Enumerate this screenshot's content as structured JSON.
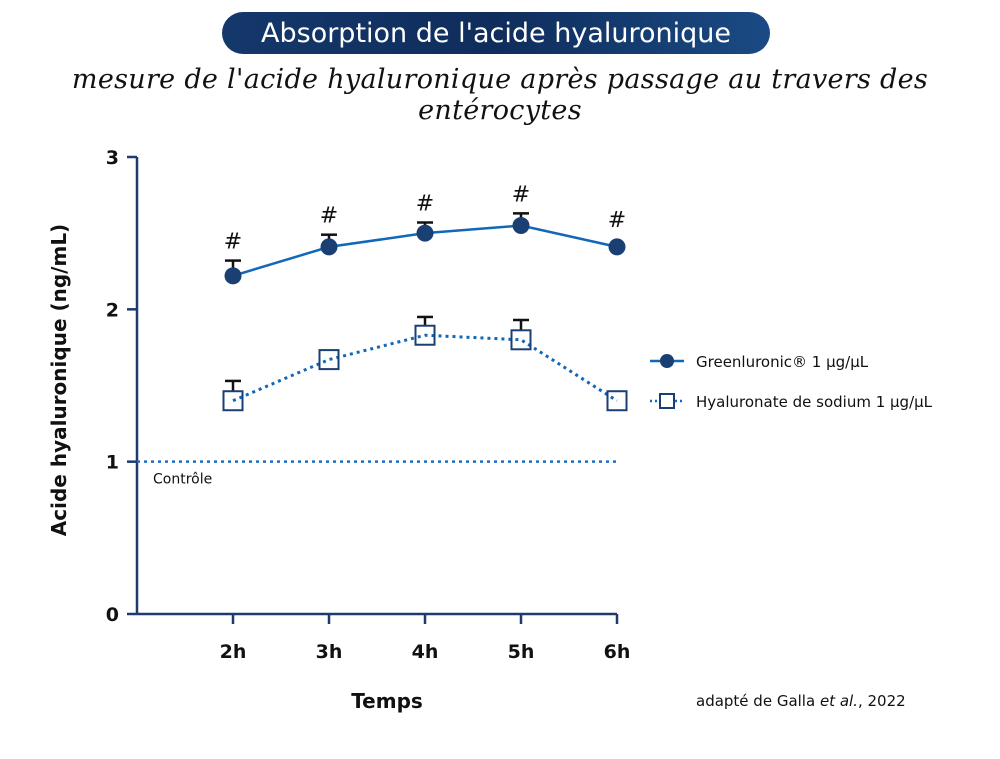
{
  "title": "Absorption de l'acide hyaluronique",
  "subtitle": "mesure de l'acide hyaluronique après passage au travers des entérocytes",
  "source": {
    "prefix": "adapté de Galla ",
    "italic": "et al.",
    "suffix": ", 2022"
  },
  "colors": {
    "line": "#1168b8",
    "marker": "#1a3f73",
    "axis": "#1e3a6e",
    "control": "#1f6fc0"
  },
  "chart_data": {
    "type": "line",
    "xlabel": "Temps",
    "ylabel": "Acide hyaluronique (ng/mL)",
    "categories": [
      "2h",
      "3h",
      "4h",
      "5h",
      "6h"
    ],
    "x": [
      2,
      3,
      4,
      5,
      6
    ],
    "xlim": [
      1,
      6
    ],
    "ylim": [
      0,
      3
    ],
    "yticks": [
      "0",
      "1",
      "2",
      "3"
    ],
    "legend_position": "right",
    "series": [
      {
        "name": "Greenluronic® 1 µg/µL",
        "style": "solid-circle",
        "values": [
          2.22,
          2.41,
          2.5,
          2.55,
          2.41
        ],
        "error_upper": [
          2.32,
          2.49,
          2.57,
          2.63,
          null
        ],
        "annotations": [
          "#",
          "#",
          "#",
          "#",
          "#"
        ]
      },
      {
        "name": "Hyaluronate de sodium 1 µg/µL",
        "style": "dotted-square",
        "values": [
          1.4,
          1.67,
          1.83,
          1.8,
          1.4
        ],
        "error_upper": [
          1.53,
          null,
          1.95,
          1.93,
          null
        ]
      }
    ],
    "reference_line": {
      "label": "Contrôle",
      "value": 1
    }
  }
}
